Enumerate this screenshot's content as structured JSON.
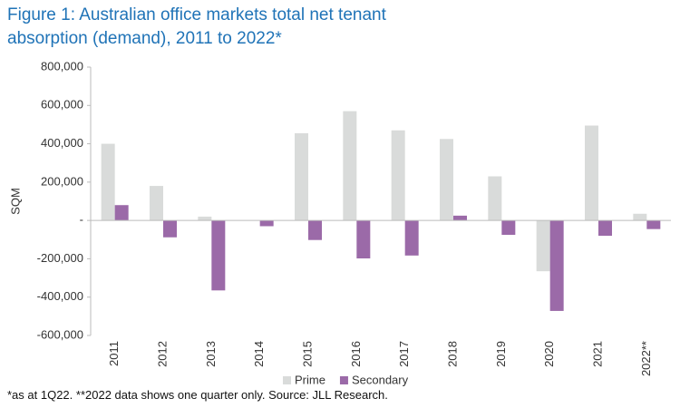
{
  "chart_data": {
    "type": "bar",
    "title": "Figure 1: Australian office markets total net tenant absorption (demand), 2011 to 2022*",
    "y_label": "SQM",
    "categories": [
      "2011",
      "2012",
      "2013",
      "2014",
      "2015",
      "2016",
      "2017",
      "2018",
      "2019",
      "2020",
      "2021",
      "2022**"
    ],
    "series": [
      {
        "name": "Prime",
        "color": "#d9dbda",
        "values": [
          400000,
          180000,
          20000,
          0,
          455000,
          570000,
          470000,
          425000,
          230000,
          -265000,
          495000,
          35000
        ]
      },
      {
        "name": "Secondary",
        "color": "#9b6aa8",
        "values": [
          80000,
          -88000,
          -365000,
          -30000,
          -102000,
          -198000,
          -183000,
          25000,
          -75000,
          -472000,
          -80000,
          -45000
        ]
      }
    ],
    "ylim": [
      -600000,
      800000
    ],
    "yticks": [
      {
        "value": -600000,
        "label": "-600,000"
      },
      {
        "value": -400000,
        "label": "-400,000"
      },
      {
        "value": -200000,
        "label": "-200,000"
      },
      {
        "value": 0,
        "label": "-"
      },
      {
        "value": 200000,
        "label": "200,000"
      },
      {
        "value": 400000,
        "label": "400,000"
      },
      {
        "value": 600000,
        "label": "600,000"
      },
      {
        "value": 800000,
        "label": "800,000"
      }
    ],
    "legend": "bottom",
    "footnote": "*as at 1Q22. **2022 data shows one quarter only. Source: JLL Research."
  }
}
